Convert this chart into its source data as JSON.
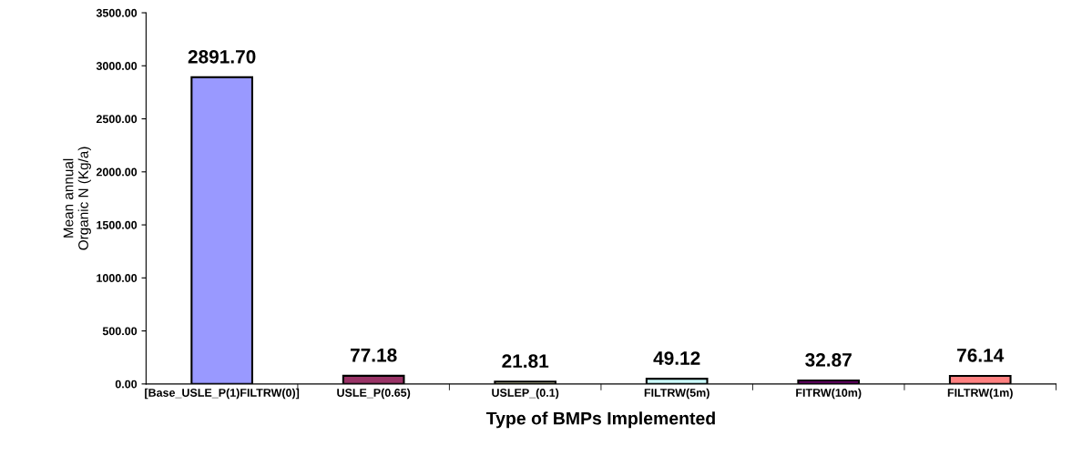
{
  "chart_data": {
    "type": "bar",
    "xlabel": "Type of BMPs Implemented",
    "ylabel": "Mean annual\nOrganic N (Kg/a)",
    "categories": [
      "[Base_USLE_P(1)FILTRW(0)]",
      "USLE_P(0.65)",
      "USLEP_(0.1)",
      "FILTRW(5m)",
      "FITRW(10m)",
      "FILTRW(1m)"
    ],
    "values": [
      2891.7,
      77.18,
      21.81,
      49.12,
      32.87,
      76.14
    ],
    "colors": [
      "#9999ff",
      "#993366",
      "#ffffcc",
      "#ccffff",
      "#660066",
      "#ff8080"
    ],
    "value_labels": [
      "2891.70",
      "77.18",
      "21.81",
      "49.12",
      "32.87",
      "76.14"
    ],
    "ylim": [
      0,
      3500
    ],
    "yticks": [
      {
        "value": 0,
        "label": "0.00"
      },
      {
        "value": 500,
        "label": "500.00"
      },
      {
        "value": 1000,
        "label": "1000.00"
      },
      {
        "value": 1500,
        "label": "1500.00"
      },
      {
        "value": 2000,
        "label": "2000.00"
      },
      {
        "value": 2500,
        "label": "2500.00"
      },
      {
        "value": 3000,
        "label": "3000.00"
      },
      {
        "value": 3500,
        "label": "3500.00"
      }
    ],
    "grid": false,
    "legend": false
  }
}
